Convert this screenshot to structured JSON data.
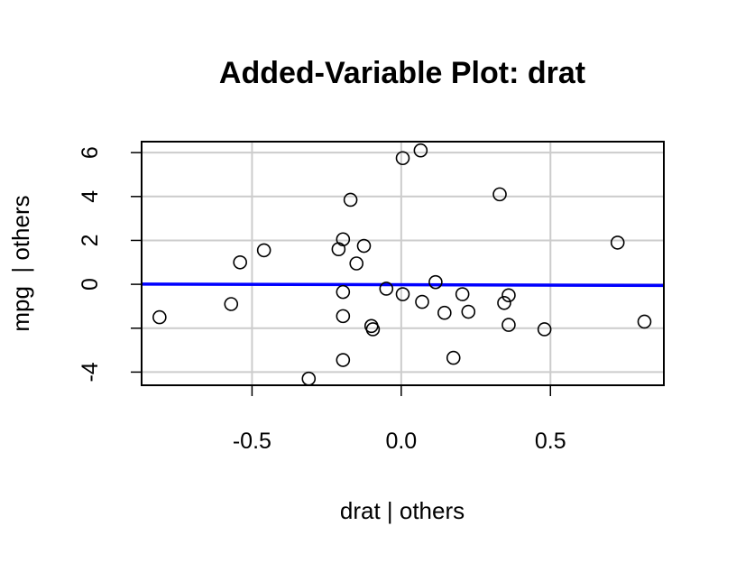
{
  "chart_data": {
    "type": "scatter",
    "title": "Added-Variable Plot: drat",
    "xlabel": "drat | others",
    "ylabel": "mpg  | others",
    "xlim": [
      -0.87,
      0.88
    ],
    "ylim": [
      -4.6,
      6.5
    ],
    "x_ticks": [
      {
        "value": -0.5,
        "label": "-0.5"
      },
      {
        "value": 0.0,
        "label": "0.0"
      },
      {
        "value": 0.5,
        "label": "0.5"
      }
    ],
    "y_ticks": [
      {
        "value": -4,
        "label": "-4"
      },
      {
        "value": -2,
        "label": ""
      },
      {
        "value": 0,
        "label": "0"
      },
      {
        "value": 2,
        "label": "2"
      },
      {
        "value": 4,
        "label": "4"
      },
      {
        "value": 6,
        "label": "6"
      }
    ],
    "grid": true,
    "grid_color": "#cccccc",
    "line_color": "#0000ff",
    "point_color": "#000000",
    "fit_line": {
      "x": [
        -0.87,
        0.88
      ],
      "y": [
        0.01,
        -0.05
      ]
    },
    "points": [
      {
        "x": -0.81,
        "y": -1.5
      },
      {
        "x": -0.57,
        "y": -0.9
      },
      {
        "x": -0.54,
        "y": 1.0
      },
      {
        "x": -0.46,
        "y": 1.55
      },
      {
        "x": -0.31,
        "y": -4.3
      },
      {
        "x": -0.21,
        "y": 1.6
      },
      {
        "x": -0.195,
        "y": 2.05
      },
      {
        "x": -0.195,
        "y": -0.35
      },
      {
        "x": -0.195,
        "y": -1.45
      },
      {
        "x": -0.195,
        "y": -3.45
      },
      {
        "x": -0.17,
        "y": 3.85
      },
      {
        "x": -0.15,
        "y": 0.95
      },
      {
        "x": -0.125,
        "y": 1.75
      },
      {
        "x": -0.1,
        "y": -1.9
      },
      {
        "x": -0.095,
        "y": -2.05
      },
      {
        "x": -0.05,
        "y": -0.2
      },
      {
        "x": 0.005,
        "y": 5.75
      },
      {
        "x": 0.005,
        "y": -0.45
      },
      {
        "x": 0.065,
        "y": 6.1
      },
      {
        "x": 0.07,
        "y": -0.8
      },
      {
        "x": 0.115,
        "y": 0.1
      },
      {
        "x": 0.145,
        "y": -1.3
      },
      {
        "x": 0.175,
        "y": -3.35
      },
      {
        "x": 0.205,
        "y": -0.45
      },
      {
        "x": 0.225,
        "y": -1.25
      },
      {
        "x": 0.33,
        "y": 4.1
      },
      {
        "x": 0.345,
        "y": -0.85
      },
      {
        "x": 0.36,
        "y": -0.5
      },
      {
        "x": 0.36,
        "y": -1.85
      },
      {
        "x": 0.48,
        "y": -2.05
      },
      {
        "x": 0.725,
        "y": 1.9
      },
      {
        "x": 0.815,
        "y": -1.7
      }
    ]
  }
}
